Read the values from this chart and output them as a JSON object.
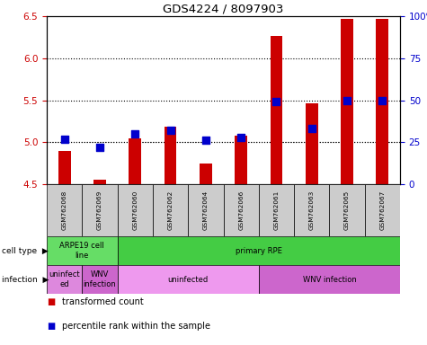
{
  "title": "GDS4224 / 8097903",
  "samples": [
    "GSM762068",
    "GSM762069",
    "GSM762060",
    "GSM762062",
    "GSM762064",
    "GSM762066",
    "GSM762061",
    "GSM762063",
    "GSM762065",
    "GSM762067"
  ],
  "red_values": [
    4.9,
    4.55,
    5.05,
    5.18,
    4.75,
    5.08,
    6.27,
    5.46,
    6.47,
    6.47
  ],
  "blue_values": [
    27,
    22,
    30,
    32,
    26,
    28,
    49,
    33,
    50,
    50
  ],
  "ylim_left": [
    4.5,
    6.5
  ],
  "ylim_right": [
    0,
    100
  ],
  "yticks_left": [
    4.5,
    5.0,
    5.5,
    6.0,
    6.5
  ],
  "yticks_right": [
    0,
    25,
    50,
    75,
    100
  ],
  "ytick_labels_right": [
    "0",
    "25",
    "50",
    "75",
    "100%"
  ],
  "grid_values": [
    5.0,
    5.5,
    6.0
  ],
  "cell_type_labels": [
    {
      "text": "ARPE19 cell\nline",
      "start": 0,
      "end": 2,
      "color": "#66DD66"
    },
    {
      "text": "primary RPE",
      "start": 2,
      "end": 10,
      "color": "#44CC44"
    }
  ],
  "infection_labels": [
    {
      "text": "uninfect\ned",
      "start": 0,
      "end": 1,
      "color": "#DD88DD"
    },
    {
      "text": "WNV\ninfection",
      "start": 1,
      "end": 2,
      "color": "#CC66CC"
    },
    {
      "text": "uninfected",
      "start": 2,
      "end": 6,
      "color": "#EE99EE"
    },
    {
      "text": "WNV infection",
      "start": 6,
      "end": 10,
      "color": "#CC66CC"
    }
  ],
  "sample_bg_color": "#CCCCCC",
  "bar_color": "#CC0000",
  "dot_color": "#0000CC",
  "bar_bottom": 4.5,
  "bar_width": 0.35,
  "dot_size": 30,
  "bar_color_legend": "#CC0000",
  "dot_color_legend": "#0000CC",
  "left_label_color": "#CC0000",
  "right_label_color": "#0000CC"
}
